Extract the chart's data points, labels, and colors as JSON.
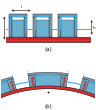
{
  "bg_color": "#ffffff",
  "gray_fill": "#7a9ab0",
  "blue_fill": "#6ab0d0",
  "red_color": "#cc2222",
  "red_line_color": "#dd3333",
  "blue_line_color": "#44aadd",
  "dark_line": "#111111",
  "gray_line": "#666688",
  "label_a": "(a)",
  "label_b": "(b)",
  "panel_a_xlim": [
    0,
    10
  ],
  "panel_a_ylim": [
    -0.8,
    3.2
  ],
  "panel_b_xlim": [
    -1,
    11
  ],
  "panel_b_ylim": [
    -1.5,
    5.5
  ]
}
